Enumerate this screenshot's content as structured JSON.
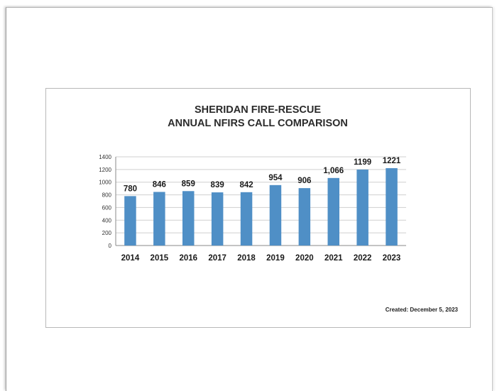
{
  "chart_data": {
    "type": "bar",
    "title": "SHERIDAN FIRE-RESCUE",
    "subtitle": "ANNUAL NFIRS CALL COMPARISON",
    "categories": [
      "2014",
      "2015",
      "2016",
      "2017",
      "2018",
      "2019",
      "2020",
      "2021",
      "2022",
      "2023"
    ],
    "values": [
      780,
      846,
      859,
      839,
      842,
      954,
      906,
      1066,
      1199,
      1221
    ],
    "data_labels": [
      "780",
      "846",
      "859",
      "839",
      "842",
      "954",
      "906",
      "1,066",
      "1199",
      "1221"
    ],
    "ylim": [
      0,
      1400
    ],
    "yticks": [
      0,
      200,
      400,
      600,
      800,
      1000,
      1200,
      1400
    ],
    "grid": true,
    "legend": "none",
    "bar_color": "#4f8fc6"
  },
  "footer": {
    "created": "Created:  December 5, 2023"
  }
}
